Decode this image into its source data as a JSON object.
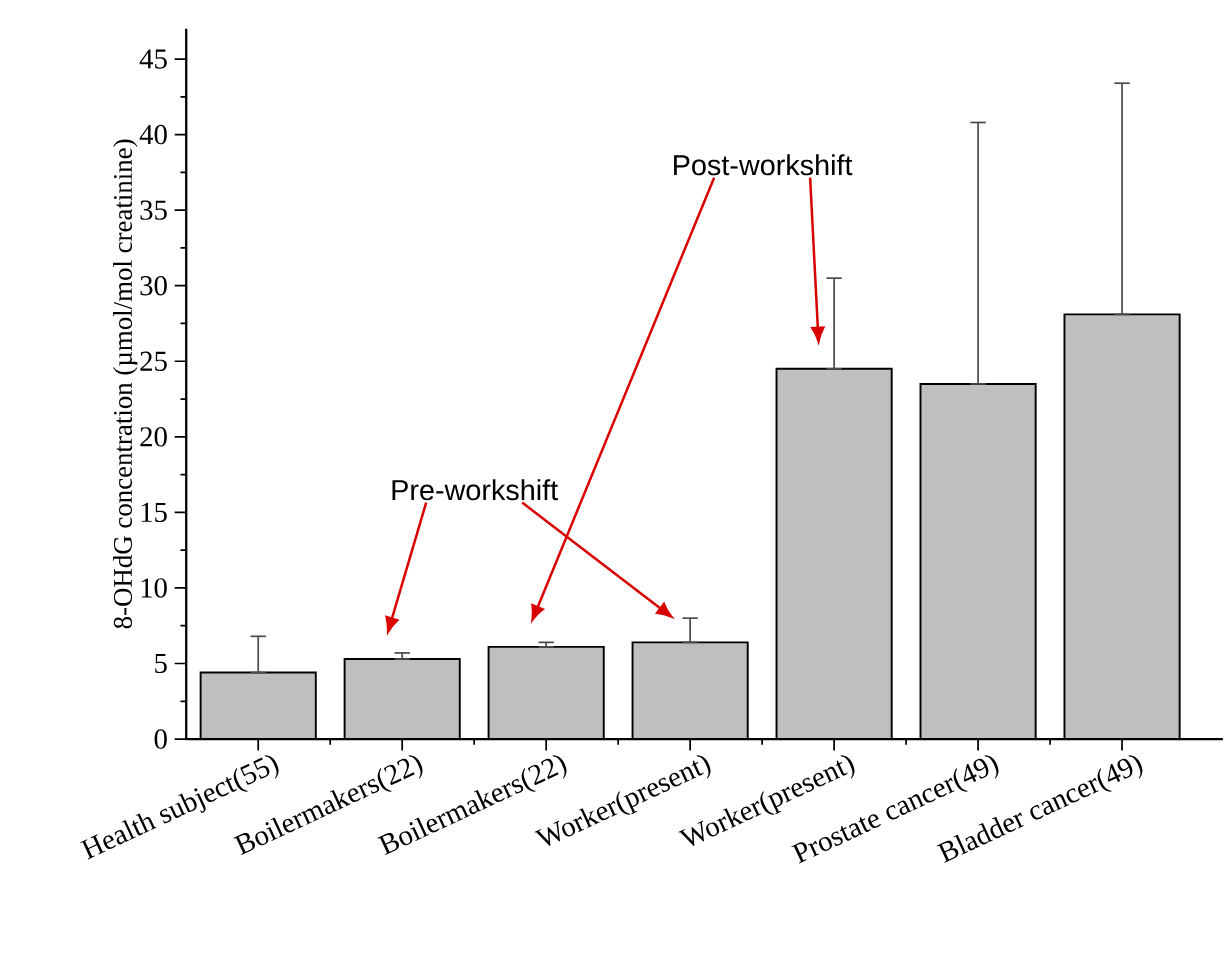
{
  "chart_data": {
    "type": "bar",
    "ylabel": "8-OHdG concentration (µmol/mol creatinine)",
    "categories": [
      "Health subject(55)",
      "Boilermakers(22)",
      "Boilermakers(22)",
      "Worker(present)",
      "Worker(present)",
      "Prostate cancer(49)",
      "Bladder cancer(49)"
    ],
    "values": [
      4.4,
      5.3,
      6.1,
      6.4,
      24.5,
      23.5,
      28.1
    ],
    "errors": [
      [
        4.4,
        6.8
      ],
      [
        5.3,
        5.7
      ],
      [
        6.1,
        6.4
      ],
      [
        6.4,
        8.0
      ],
      [
        24.5,
        30.5
      ],
      [
        23.5,
        40.8
      ],
      [
        28.1,
        43.4
      ]
    ],
    "color": "#000000",
    "ylim": [
      0,
      47
    ],
    "yticks": [
      0,
      5,
      10,
      15,
      20,
      25,
      30,
      35,
      40,
      45
    ],
    "grid": false,
    "annotations": [
      "Pre-workshift",
      "Post-workshift"
    ]
  }
}
